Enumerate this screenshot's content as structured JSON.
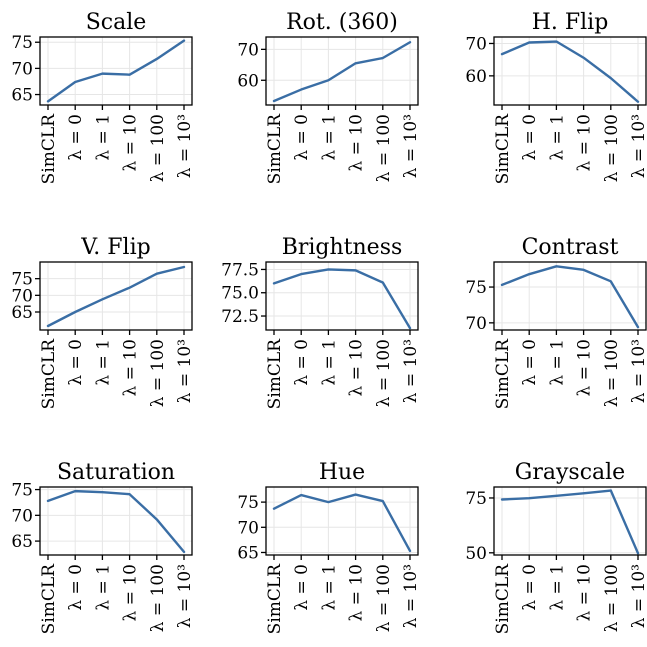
{
  "chart_data": [
    {
      "type": "line",
      "title": "Scale",
      "categories": [
        "SimCLR",
        "λ = 0",
        "λ = 1",
        "λ = 10",
        "λ = 100",
        "λ = 10³"
      ],
      "values": [
        63.7,
        67.4,
        69.0,
        68.8,
        71.8,
        75.3
      ],
      "ylim": [
        63.0,
        76.0
      ],
      "yticks": [
        65,
        70,
        75
      ],
      "ytick_labels": [
        "65",
        "70",
        "75"
      ],
      "color": "#3a6ea5",
      "grid": true
    },
    {
      "type": "line",
      "title": "Rot. (360)",
      "categories": [
        "SimCLR",
        "λ = 0",
        "λ = 1",
        "λ = 10",
        "λ = 100",
        "λ = 10³"
      ],
      "values": [
        53.3,
        57.0,
        60.0,
        65.5,
        67.2,
        72.3
      ],
      "ylim": [
        52.0,
        74.0
      ],
      "yticks": [
        60,
        70
      ],
      "ytick_labels": [
        "60",
        "70"
      ],
      "color": "#3a6ea5",
      "grid": true
    },
    {
      "type": "line",
      "title": "H. Flip",
      "categories": [
        "SimCLR",
        "λ = 0",
        "λ = 1",
        "λ = 10",
        "λ = 100",
        "λ = 10³"
      ],
      "values": [
        66.7,
        70.3,
        70.6,
        65.6,
        59.3,
        52.0
      ],
      "ylim": [
        51.0,
        72.0
      ],
      "yticks": [
        60,
        70
      ],
      "ytick_labels": [
        "60",
        "70"
      ],
      "color": "#3a6ea5",
      "grid": true
    },
    {
      "type": "line",
      "title": "V. Flip",
      "categories": [
        "SimCLR",
        "λ = 0",
        "λ = 1",
        "λ = 10",
        "λ = 100",
        "λ = 10³"
      ],
      "values": [
        60.8,
        65.0,
        68.8,
        72.3,
        76.5,
        78.5
      ],
      "ylim": [
        59.6,
        80.0
      ],
      "yticks": [
        65,
        70,
        75
      ],
      "ytick_labels": [
        "65",
        "70",
        "75"
      ],
      "color": "#3a6ea5",
      "grid": true
    },
    {
      "type": "line",
      "title": "Brightness",
      "categories": [
        "SimCLR",
        "λ = 0",
        "λ = 1",
        "λ = 10",
        "λ = 100",
        "λ = 10³"
      ],
      "values": [
        76.0,
        77.0,
        77.5,
        77.4,
        76.1,
        71.2
      ],
      "ylim": [
        71.0,
        78.3
      ],
      "yticks": [
        72.5,
        75.0,
        77.5
      ],
      "ytick_labels": [
        "72.5",
        "75.0",
        "77.5"
      ],
      "color": "#3a6ea5",
      "grid": true
    },
    {
      "type": "line",
      "title": "Contrast",
      "categories": [
        "SimCLR",
        "λ = 0",
        "λ = 1",
        "λ = 10",
        "λ = 100",
        "λ = 10³"
      ],
      "values": [
        75.3,
        76.8,
        77.9,
        77.4,
        75.8,
        69.4
      ],
      "ylim": [
        69.0,
        78.5
      ],
      "yticks": [
        70,
        75
      ],
      "ytick_labels": [
        "70",
        "75"
      ],
      "color": "#3a6ea5",
      "grid": true
    },
    {
      "type": "line",
      "title": "Saturation",
      "categories": [
        "SimCLR",
        "λ = 0",
        "λ = 1",
        "λ = 10",
        "λ = 100",
        "λ = 10³"
      ],
      "values": [
        72.8,
        74.7,
        74.5,
        74.1,
        69.2,
        62.9
      ],
      "ylim": [
        62.3,
        75.5
      ],
      "yticks": [
        65,
        70,
        75
      ],
      "ytick_labels": [
        "65",
        "70",
        "75"
      ],
      "color": "#3a6ea5",
      "grid": true
    },
    {
      "type": "line",
      "title": "Hue",
      "categories": [
        "SimCLR",
        "λ = 0",
        "λ = 1",
        "λ = 10",
        "λ = 100",
        "λ = 10³"
      ],
      "values": [
        73.7,
        76.4,
        75.0,
        76.5,
        75.2,
        65.3
      ],
      "ylim": [
        64.5,
        78.0
      ],
      "yticks": [
        65,
        70,
        75
      ],
      "ytick_labels": [
        "65",
        "70",
        "75"
      ],
      "color": "#3a6ea5",
      "grid": true
    },
    {
      "type": "line",
      "title": "Grayscale",
      "categories": [
        "SimCLR",
        "λ = 0",
        "λ = 1",
        "λ = 10",
        "λ = 100",
        "λ = 10³"
      ],
      "values": [
        74.3,
        74.9,
        76.0,
        77.1,
        78.4,
        49.8
      ],
      "ylim": [
        49.0,
        80.0
      ],
      "yticks": [
        50,
        75
      ],
      "ytick_labels": [
        "50",
        "75"
      ],
      "color": "#3a6ea5",
      "grid": true
    }
  ]
}
